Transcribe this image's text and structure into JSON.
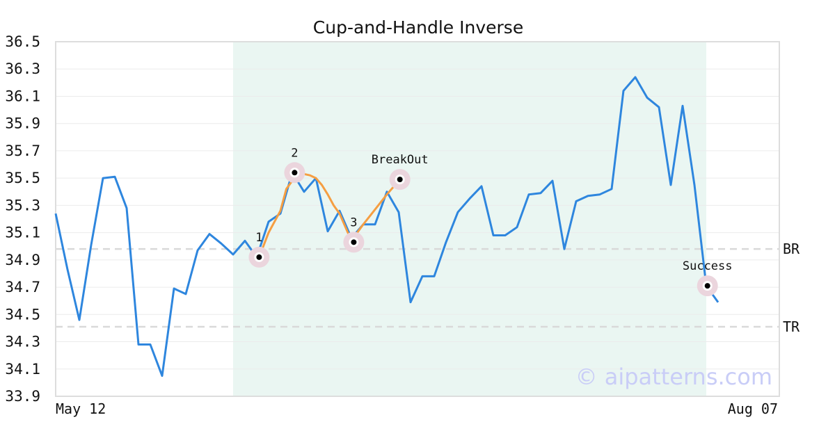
{
  "chart_data": {
    "type": "line",
    "title": "Cup-and-Handle Inverse",
    "xlabel": "",
    "ylabel": "",
    "ylim": [
      33.9,
      36.5
    ],
    "y_ticks": [
      "36.5",
      "36.3",
      "36.1",
      "35.9",
      "35.7",
      "35.5",
      "35.3",
      "35.1",
      "34.9",
      "34.7",
      "34.5",
      "34.3",
      "34.1",
      "33.9"
    ],
    "x_tick_labels": [
      "May 12",
      "Aug 07"
    ],
    "grid": true,
    "colors": {
      "price": "#2e86de",
      "pattern": "#f59e42",
      "shade": "#eaf6f2",
      "level": "#d9d9d9",
      "marker_halo": "#ebd5dd",
      "watermark": "#c9cdf7"
    },
    "shaded_region": {
      "x_start": 15,
      "x_end": 55
    },
    "series": [
      {
        "values": [
          35.24,
          34.83,
          34.46,
          35.01,
          35.5,
          35.51,
          35.28,
          34.28,
          34.28,
          34.05,
          34.69,
          34.65,
          34.97,
          35.09,
          35.02,
          34.94,
          35.04,
          34.92,
          35.18,
          35.24,
          35.54,
          35.4,
          35.5,
          35.11,
          35.26,
          35.06,
          35.16,
          35.16,
          35.4,
          35.25,
          34.59,
          34.78,
          34.78,
          35.03,
          35.25,
          35.35,
          35.44,
          35.08,
          35.08,
          35.14,
          35.38,
          35.39,
          35.48,
          34.98,
          35.33,
          35.37,
          35.38,
          35.42,
          36.14,
          36.24,
          36.09,
          36.02,
          35.45,
          36.03,
          35.45,
          34.71,
          34.59
        ]
      },
      {
        "values": [
          [
            17.2,
            34.92
          ],
          [
            18,
            35.1
          ],
          [
            19,
            35.26
          ],
          [
            19.5,
            35.42
          ],
          [
            20,
            35.48
          ],
          [
            20.5,
            35.52
          ],
          [
            21,
            35.53
          ],
          [
            21.5,
            35.52
          ],
          [
            22,
            35.5
          ],
          [
            22.5,
            35.45
          ],
          [
            23,
            35.38
          ],
          [
            23.5,
            35.3
          ],
          [
            24,
            35.24
          ],
          [
            24.5,
            35.14
          ],
          [
            25,
            35.04
          ],
          [
            26,
            35.16
          ],
          [
            27,
            35.27
          ],
          [
            28,
            35.38
          ],
          [
            29.1,
            35.49
          ]
        ]
      }
    ],
    "levels": [
      {
        "label": "BR",
        "y": 34.98
      },
      {
        "label": "TR",
        "y": 34.41
      }
    ],
    "annotations": [
      {
        "label": "1",
        "x": 17.2,
        "y": 34.92
      },
      {
        "label": "2",
        "x": 20.2,
        "y": 35.54
      },
      {
        "label": "3",
        "x": 25.2,
        "y": 35.03
      },
      {
        "label": "BreakOut",
        "x": 29.1,
        "y": 35.49
      },
      {
        "label": "Success",
        "x": 55.1,
        "y": 34.71
      }
    ]
  },
  "watermark": "© aipatterns.com"
}
